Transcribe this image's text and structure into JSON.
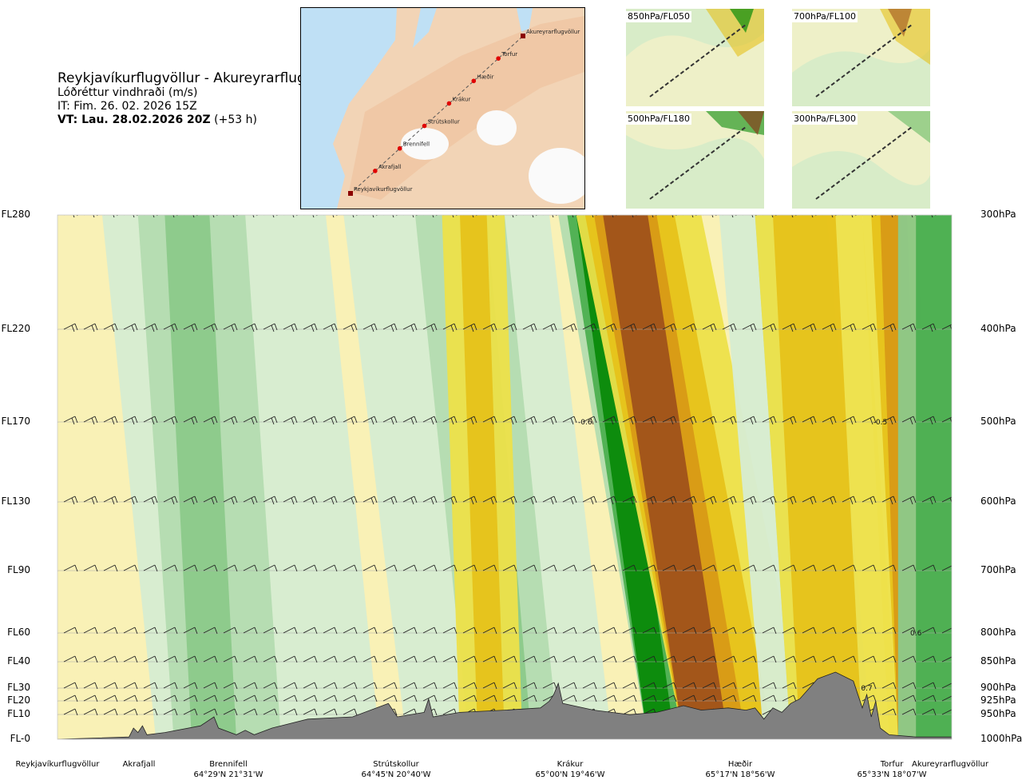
{
  "title_block": {
    "title": "Reykjavíkurflugvöllur - Akureyrarflugvöllur",
    "subtitle": "Lóðréttur vindhraði (m/s)",
    "it": "IT: Fim. 26. 02. 2026 15Z",
    "vt_bold": "VT: Lau. 28.02.2026 20Z",
    "vt_offset": " (+53 h)"
  },
  "route_map": {
    "waypoints": [
      "Akureyrarflugvöllur",
      "Torfur",
      "Hæðir",
      "Krákur",
      "Strútskollur",
      "Brennifell",
      "Akrafjall",
      "Reykjavíkurflugvöllur"
    ]
  },
  "mini_maps": [
    {
      "label": "850hPa/FL050"
    },
    {
      "label": "700hPa/FL100"
    },
    {
      "label": "500hPa/FL180"
    },
    {
      "label": "300hPa/FL300"
    }
  ],
  "chart_data": {
    "type": "heatmap",
    "variable": "Lóðréttur vindhraði (m/s)",
    "y_axis_left_flight_levels": [
      "FL280",
      "FL220",
      "FL170",
      "FL130",
      "FL90",
      "FL60",
      "FL40",
      "FL30",
      "FL20",
      "FL10",
      "FL-0"
    ],
    "y_axis_right_pressure": [
      "300hPa",
      "400hPa",
      "500hPa",
      "600hPa",
      "700hPa",
      "800hPa",
      "850hPa",
      "900hPa",
      "925hPa",
      "950hPa",
      "1000hPa"
    ],
    "pressure_hpa": [
      300,
      400,
      500,
      600,
      700,
      800,
      850,
      900,
      925,
      950,
      1000
    ],
    "x_stations": [
      {
        "name": "Reykjavíkurflugvöllur",
        "coord": "",
        "dist": 0
      },
      {
        "name": "Akrafjall",
        "coord": "",
        "dist": 0.09
      },
      {
        "name": "Brennifell",
        "coord": "64°29'N 21°31'W",
        "dist": 0.19
      },
      {
        "name": "Strútskollur",
        "coord": "64°45'N 20°40'W",
        "dist": 0.39
      },
      {
        "name": "Krákur",
        "coord": "65°00'N 19°46'W",
        "dist": 0.58
      },
      {
        "name": "Hæðir",
        "coord": "65°17'N 18°56'W",
        "dist": 0.79
      },
      {
        "name": "Torfur",
        "coord": "65°33'N 18°07'W",
        "dist": 0.94
      },
      {
        "name": "Akureyrarflugvöllur",
        "coord": "",
        "dist": 1.0
      }
    ],
    "contour_labels": [
      {
        "text": "-0.6",
        "dist": 0.59,
        "p": 500
      },
      {
        "text": "-0.5",
        "dist": 0.92,
        "p": 500
      },
      {
        "text": "0.6",
        "dist": 0.96,
        "p": 800
      },
      {
        "text": "0.7",
        "dist": 0.905,
        "p": 900
      }
    ],
    "features": [
      {
        "kind": "ascent",
        "center_dist": 0.56,
        "value": 1.4
      },
      {
        "kind": "descent",
        "center_dist": 0.62,
        "value": -0.9
      },
      {
        "kind": "descent",
        "center_dist": 0.93,
        "value": -0.8
      },
      {
        "kind": "ascent",
        "center_dist": 0.98,
        "value": 0.9
      }
    ],
    "color_scale": {
      "ascent": [
        "#ffffff",
        "#d6ecd2",
        "#b4dcb0",
        "#8cc98a",
        "#4caf50",
        "#0a8a0a",
        "#006400",
        "#4682b4"
      ],
      "descent": [
        "#ffffff",
        "#f9f1b6",
        "#ede04a",
        "#e6c21a",
        "#d89a16",
        "#a0521a",
        "#8b2a10",
        "#a01010"
      ]
    },
    "terrain_color": "#808080"
  }
}
